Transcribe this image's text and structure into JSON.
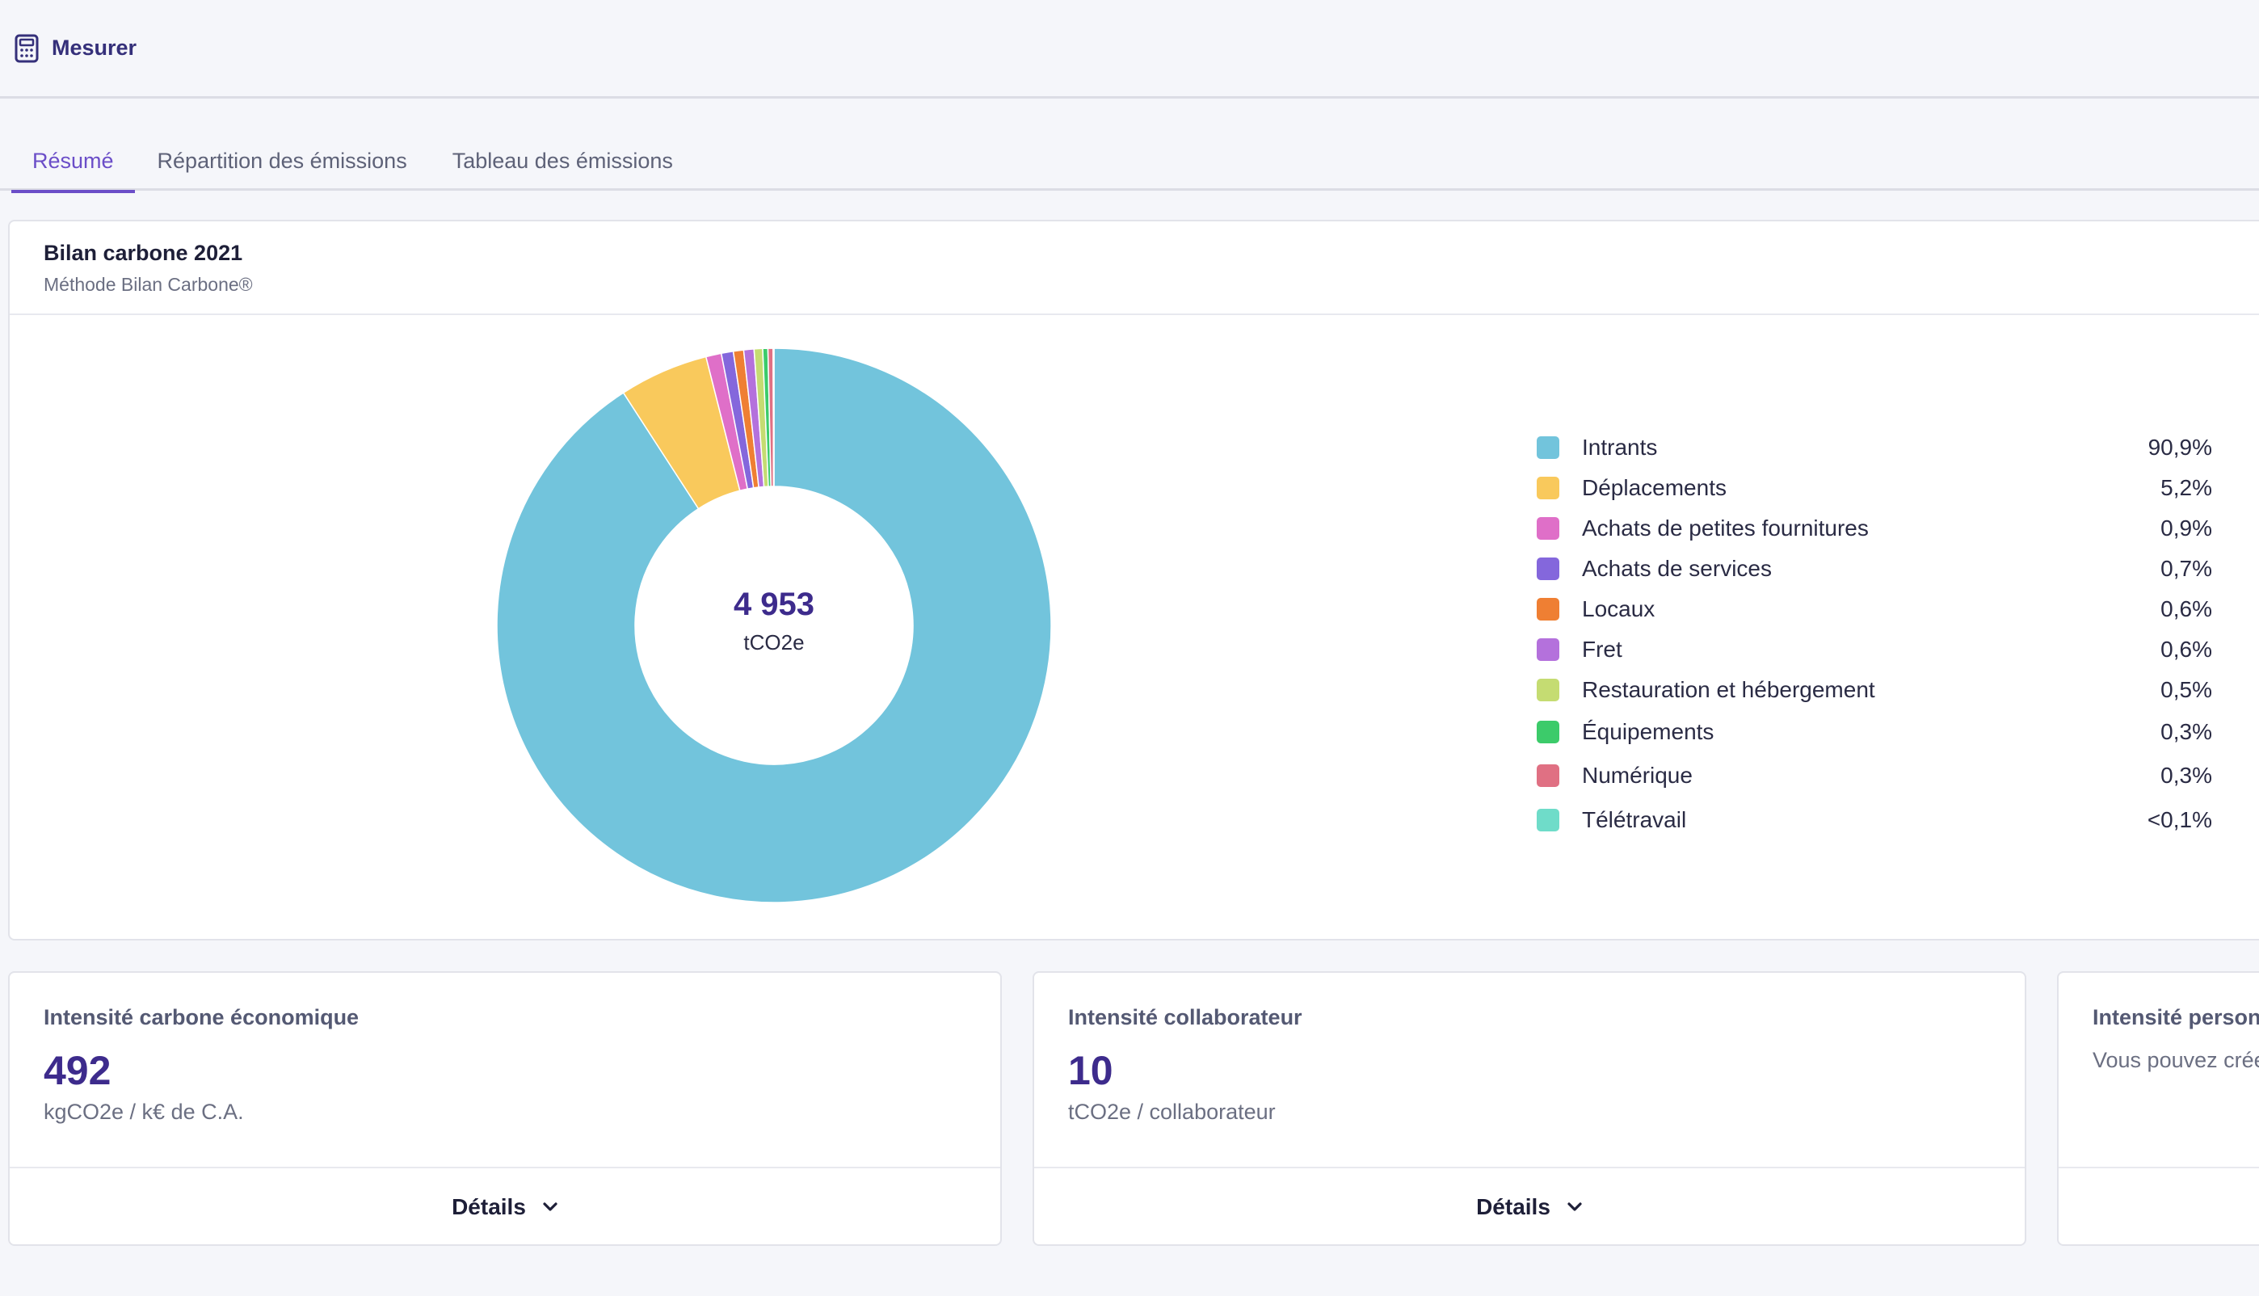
{
  "header": {
    "title": "Mesurer",
    "icon": "calculator-icon"
  },
  "tabs": [
    {
      "label": "Résumé",
      "active": true
    },
    {
      "label": "Répartition des émissions",
      "active": false
    },
    {
      "label": "Tableau des émissions",
      "active": false
    }
  ],
  "summary": {
    "title": "Bilan carbone 2021",
    "subtitle": "Méthode Bilan Carbone®",
    "total_value": "4 953",
    "total_unit": "tCO2e"
  },
  "chart_data": {
    "type": "pie",
    "title": "Bilan carbone 2021",
    "categories": [
      "Intrants",
      "Déplacements",
      "Achats de petites fournitures",
      "Achats de services",
      "Locaux",
      "Fret",
      "Restauration et hébergement",
      "Équipements",
      "Numérique",
      "Télétravail"
    ],
    "values": [
      90.9,
      5.2,
      0.9,
      0.7,
      0.6,
      0.6,
      0.5,
      0.3,
      0.3,
      0.05
    ],
    "value_labels": [
      "90,9%",
      "5,2%",
      "0,9%",
      "0,7%",
      "0,6%",
      "0,6%",
      "0,5%",
      "0,3%",
      "0,3%",
      "<0,1%"
    ],
    "colors": [
      "#72c4dc",
      "#f9c95c",
      "#df6fc8",
      "#8467dc",
      "#ef7f33",
      "#b471dc",
      "#c5dc72",
      "#3ccb6a",
      "#e07083",
      "#6fdcc9"
    ],
    "legend_position": "right",
    "center_value": "4 953",
    "center_unit": "tCO2e"
  },
  "stats": [
    {
      "title": "Intensité carbone économique",
      "value": "492",
      "unit": "kgCO2e / k€ de C.A.",
      "details_label": "Détails"
    },
    {
      "title": "Intensité collaborateur",
      "value": "10",
      "unit": "tCO2e / collaborateur",
      "details_label": "Détails"
    },
    {
      "title": "Intensité personnalisée",
      "description": "Vous pouvez créer votre propre indicateur"
    }
  ]
}
